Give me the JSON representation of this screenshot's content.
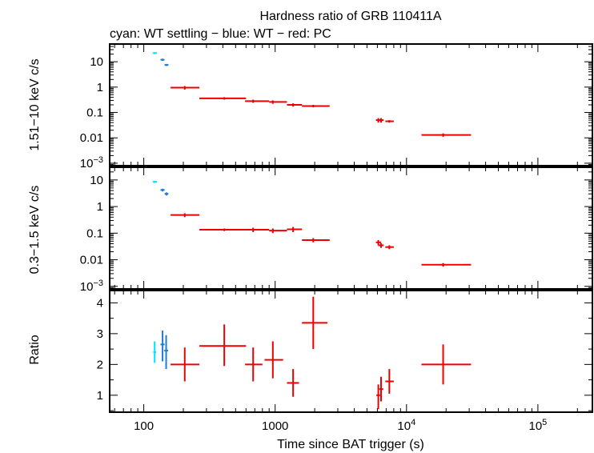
{
  "chart_data": [
    {
      "type": "scatter",
      "panel": "top",
      "title": "Hardness ratio of GRB 110411A",
      "subtitle": "cyan: WT settling − blue: WT − red: PC",
      "ylabel": "1.51−10 keV c/s",
      "x_scale": "log",
      "y_scale": "log",
      "xlim": [
        55,
        260000
      ],
      "ylim": [
        0.0008,
        50
      ],
      "y_ticks": [
        {
          "value": 10,
          "label": "10"
        },
        {
          "value": 1,
          "label": "1"
        },
        {
          "value": 0.1,
          "label": "0.1"
        },
        {
          "value": 0.01,
          "label": "0.01"
        },
        {
          "value": 0.001,
          "label": "10−3"
        }
      ],
      "series": [
        {
          "color": "#00e5ff",
          "points": [
            {
              "x": 121,
              "xlo": 117,
              "xhi": 126,
              "y": 22,
              "ylo": 20,
              "yhi": 24
            }
          ]
        },
        {
          "color": "#1e7bd8",
          "points": [
            {
              "x": 139,
              "xlo": 134,
              "xhi": 144,
              "y": 12,
              "ylo": 10.8,
              "yhi": 13.2
            },
            {
              "x": 149,
              "xlo": 144,
              "xhi": 154,
              "y": 7.5,
              "ylo": 6.8,
              "yhi": 8.2
            }
          ]
        },
        {
          "color": "#ee0000",
          "points": [
            {
              "x": 205,
              "xlo": 160,
              "xhi": 265,
              "y": 0.95,
              "ylo": 0.8,
              "yhi": 1.1
            },
            {
              "x": 410,
              "xlo": 265,
              "xhi": 600,
              "y": 0.36,
              "ylo": 0.32,
              "yhi": 0.4
            },
            {
              "x": 680,
              "xlo": 590,
              "xhi": 900,
              "y": 0.28,
              "ylo": 0.24,
              "yhi": 0.32
            },
            {
              "x": 960,
              "xlo": 900,
              "xhi": 1230,
              "y": 0.26,
              "ylo": 0.22,
              "yhi": 0.3
            },
            {
              "x": 1370,
              "xlo": 1230,
              "xhi": 1600,
              "y": 0.2,
              "ylo": 0.17,
              "yhi": 0.23
            },
            {
              "x": 1950,
              "xlo": 1600,
              "xhi": 2600,
              "y": 0.18,
              "ylo": 0.16,
              "yhi": 0.2
            },
            {
              "x": 6100,
              "xlo": 5850,
              "xhi": 6400,
              "y": 0.05,
              "ylo": 0.04,
              "yhi": 0.06
            },
            {
              "x": 6400,
              "xlo": 6100,
              "xhi": 6700,
              "y": 0.05,
              "ylo": 0.04,
              "yhi": 0.06
            },
            {
              "x": 7400,
              "xlo": 6900,
              "xhi": 8000,
              "y": 0.045,
              "ylo": 0.04,
              "yhi": 0.05
            },
            {
              "x": 19000,
              "xlo": 13000,
              "xhi": 31000,
              "y": 0.013,
              "ylo": 0.011,
              "yhi": 0.015
            }
          ]
        }
      ]
    },
    {
      "type": "scatter",
      "panel": "middle",
      "ylabel": "0.3−1.5 keV c/s",
      "x_scale": "log",
      "y_scale": "log",
      "xlim": [
        55,
        260000
      ],
      "ylim": [
        0.0008,
        30
      ],
      "y_ticks": [
        {
          "value": 10,
          "label": "10"
        },
        {
          "value": 1,
          "label": "1"
        },
        {
          "value": 0.1,
          "label": "0.1"
        },
        {
          "value": 0.01,
          "label": "0.01"
        },
        {
          "value": 0.001,
          "label": "10−3"
        }
      ],
      "series": [
        {
          "color": "#00e5ff",
          "points": [
            {
              "x": 121,
              "xlo": 117,
              "xhi": 126,
              "y": 8.5,
              "ylo": 7.7,
              "yhi": 9.3
            }
          ]
        },
        {
          "color": "#1e7bd8",
          "points": [
            {
              "x": 139,
              "xlo": 134,
              "xhi": 144,
              "y": 4.2,
              "ylo": 3.7,
              "yhi": 4.7
            },
            {
              "x": 149,
              "xlo": 144,
              "xhi": 154,
              "y": 3.0,
              "ylo": 2.6,
              "yhi": 3.4
            }
          ]
        },
        {
          "color": "#ee0000",
          "points": [
            {
              "x": 205,
              "xlo": 160,
              "xhi": 265,
              "y": 0.48,
              "ylo": 0.4,
              "yhi": 0.56
            },
            {
              "x": 410,
              "xlo": 265,
              "xhi": 600,
              "y": 0.135,
              "ylo": 0.12,
              "yhi": 0.15
            },
            {
              "x": 680,
              "xlo": 590,
              "xhi": 900,
              "y": 0.135,
              "ylo": 0.11,
              "yhi": 0.16
            },
            {
              "x": 960,
              "xlo": 900,
              "xhi": 1230,
              "y": 0.125,
              "ylo": 0.1,
              "yhi": 0.15
            },
            {
              "x": 1370,
              "xlo": 1230,
              "xhi": 1600,
              "y": 0.14,
              "ylo": 0.11,
              "yhi": 0.17
            },
            {
              "x": 1950,
              "xlo": 1600,
              "xhi": 2600,
              "y": 0.055,
              "ylo": 0.045,
              "yhi": 0.065
            },
            {
              "x": 6100,
              "xlo": 5850,
              "xhi": 6400,
              "y": 0.045,
              "ylo": 0.035,
              "yhi": 0.055
            },
            {
              "x": 6400,
              "xlo": 6100,
              "xhi": 6700,
              "y": 0.035,
              "ylo": 0.028,
              "yhi": 0.042
            },
            {
              "x": 7400,
              "xlo": 6900,
              "xhi": 8000,
              "y": 0.03,
              "ylo": 0.025,
              "yhi": 0.035
            },
            {
              "x": 19000,
              "xlo": 13000,
              "xhi": 31000,
              "y": 0.0065,
              "ylo": 0.0055,
              "yhi": 0.0075
            }
          ]
        }
      ]
    },
    {
      "type": "scatter",
      "panel": "bottom",
      "ylabel": "Ratio",
      "xlabel": "Time since BAT trigger (s)",
      "x_scale": "log",
      "y_scale": "linear",
      "xlim": [
        55,
        260000
      ],
      "ylim": [
        0.45,
        4.4
      ],
      "y_ticks": [
        {
          "value": 1,
          "label": "1"
        },
        {
          "value": 2,
          "label": "2"
        },
        {
          "value": 3,
          "label": "3"
        },
        {
          "value": 4,
          "label": "4"
        }
      ],
      "x_ticks": [
        {
          "value": 100,
          "label": "100"
        },
        {
          "value": 1000,
          "label": "1000"
        },
        {
          "value": 10000,
          "label": "10",
          "sup": "4"
        },
        {
          "value": 100000,
          "label": "10",
          "sup": "5"
        }
      ],
      "series": [
        {
          "color": "#00e5ff",
          "points": [
            {
              "x": 121,
              "xlo": 118,
              "xhi": 124,
              "y": 2.4,
              "ylo": 2.05,
              "yhi": 2.75
            }
          ]
        },
        {
          "color": "#1e7bd8",
          "points": [
            {
              "x": 139,
              "xlo": 134,
              "xhi": 144,
              "y": 2.65,
              "ylo": 2.1,
              "yhi": 3.1
            },
            {
              "x": 148,
              "xlo": 143,
              "xhi": 153,
              "y": 2.45,
              "ylo": 1.85,
              "yhi": 2.95
            }
          ]
        },
        {
          "color": "#ee0000",
          "points": [
            {
              "x": 205,
              "xlo": 160,
              "xhi": 265,
              "y": 2.0,
              "ylo": 1.45,
              "yhi": 2.55
            },
            {
              "x": 410,
              "xlo": 265,
              "xhi": 600,
              "y": 2.6,
              "ylo": 1.95,
              "yhi": 3.3
            },
            {
              "x": 680,
              "xlo": 590,
              "xhi": 800,
              "y": 2.0,
              "ylo": 1.45,
              "yhi": 2.55
            },
            {
              "x": 960,
              "xlo": 830,
              "xhi": 1150,
              "y": 2.15,
              "ylo": 1.55,
              "yhi": 2.75
            },
            {
              "x": 1370,
              "xlo": 1230,
              "xhi": 1520,
              "y": 1.4,
              "ylo": 0.95,
              "yhi": 1.85
            },
            {
              "x": 1950,
              "xlo": 1600,
              "xhi": 2500,
              "y": 3.35,
              "ylo": 2.5,
              "yhi": 4.2
            },
            {
              "x": 6100,
              "xlo": 5900,
              "xhi": 6300,
              "y": 1.0,
              "ylo": 0.55,
              "yhi": 1.35
            },
            {
              "x": 6400,
              "xlo": 6200,
              "xhi": 6650,
              "y": 1.2,
              "ylo": 0.8,
              "yhi": 1.6
            },
            {
              "x": 7400,
              "xlo": 6900,
              "xhi": 8000,
              "y": 1.45,
              "ylo": 1.05,
              "yhi": 1.85
            },
            {
              "x": 19000,
              "xlo": 13000,
              "xhi": 31000,
              "y": 2.0,
              "ylo": 1.35,
              "yhi": 2.65
            }
          ]
        }
      ]
    }
  ]
}
